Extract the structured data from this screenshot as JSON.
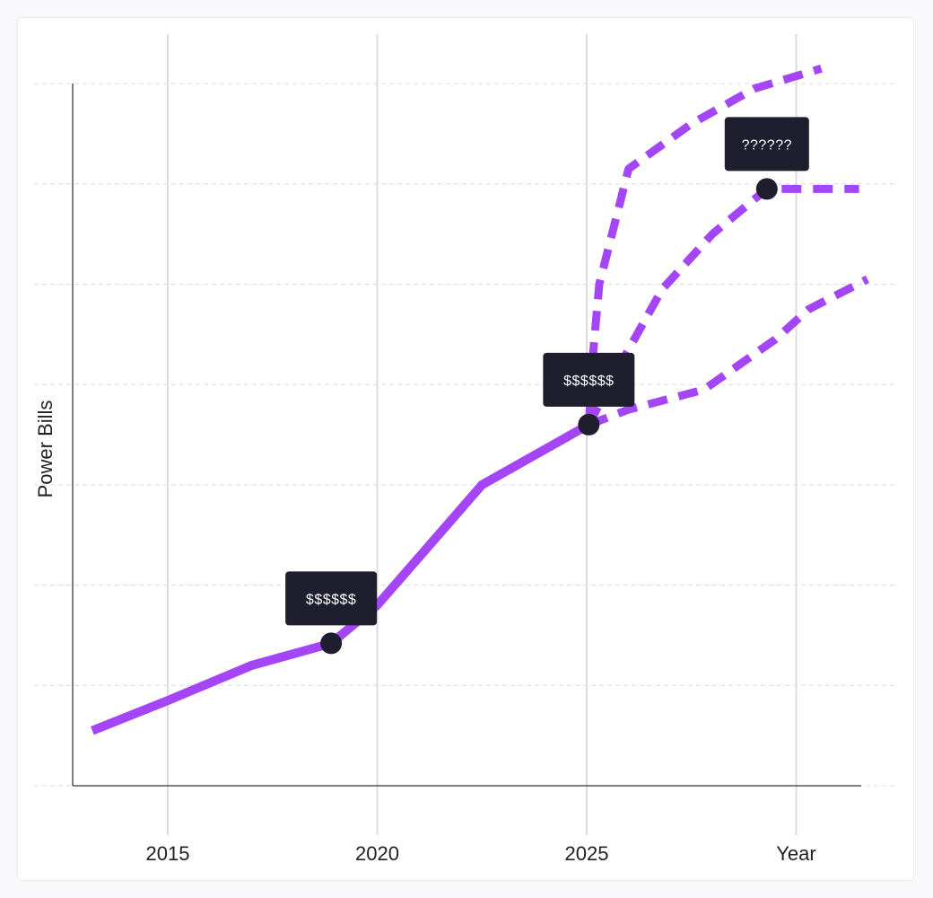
{
  "chart_data": {
    "type": "line",
    "xlabel": "Year",
    "ylabel": "Power Bills",
    "x_ticks": [
      "2015",
      "2020",
      "2025"
    ],
    "xlim": [
      2013,
      2031.5
    ],
    "ylim": [
      0,
      7
    ],
    "grid": true,
    "historical": {
      "x": [
        2013.2,
        2015,
        2017,
        2018.9,
        2020,
        2022.5,
        2025.05
      ],
      "y": [
        0.55,
        0.85,
        1.2,
        1.42,
        1.8,
        3.0,
        3.6
      ]
    },
    "projections": [
      {
        "x": [
          2025.05,
          2025.15,
          2025.3,
          2026,
          2027.5,
          2029,
          2030.6
        ],
        "y": [
          3.6,
          4.3,
          5.0,
          6.15,
          6.6,
          6.95,
          7.15
        ]
      },
      {
        "x": [
          2025.05,
          2025.8,
          2026.8,
          2028,
          2029.3,
          2030,
          2031.5
        ],
        "y": [
          3.6,
          4.2,
          4.95,
          5.5,
          5.95,
          5.95,
          5.95
        ]
      },
      {
        "x": [
          2025.05,
          2026,
          2027.8,
          2029.5,
          2030.3,
          2031.7
        ],
        "y": [
          3.6,
          3.75,
          3.95,
          4.45,
          4.75,
          5.05
        ]
      }
    ],
    "markers": [
      {
        "x": 2018.9,
        "y": 1.42,
        "label": "$$$$$$"
      },
      {
        "x": 2025.05,
        "y": 3.6,
        "label": "$$$$$$"
      },
      {
        "x": 2029.3,
        "y": 5.95,
        "label": "??????"
      }
    ],
    "colors": {
      "line": "#a445f7",
      "marker": "#1f1e2e",
      "callout_bg": "#1f1e2e",
      "grid": "#dcdce0",
      "axis": "#444444"
    }
  }
}
